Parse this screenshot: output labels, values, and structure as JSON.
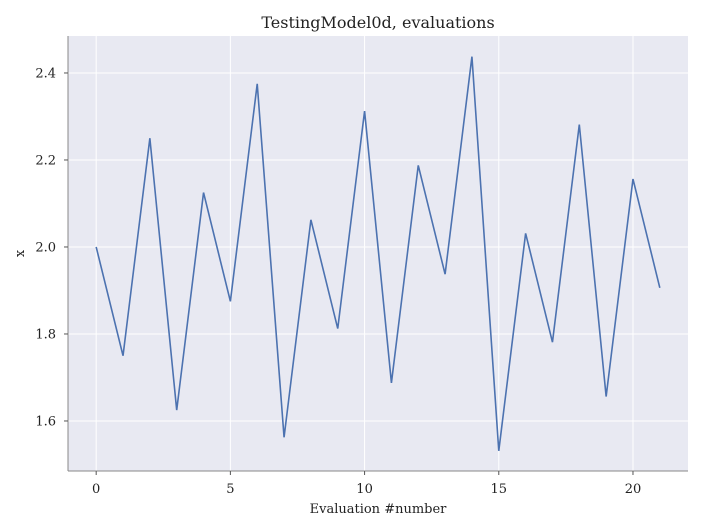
{
  "chart_data": {
    "type": "line",
    "title": "TestingModel0d, evaluations",
    "xlabel": "Evaluation #number",
    "ylabel": "x",
    "xlim": [
      -1.05,
      22.05
    ],
    "ylim": [
      1.485,
      2.485
    ],
    "grid": true,
    "background_color": "#e8e9f2",
    "grid_color": "#ffffff",
    "line_color": "#4c72b0",
    "x_ticks": [
      0,
      5,
      10,
      15,
      20
    ],
    "x_tick_labels": [
      "0",
      "5",
      "10",
      "15",
      "20"
    ],
    "y_ticks": [
      1.6,
      1.8,
      2.0,
      2.2,
      2.4
    ],
    "y_tick_labels": [
      "1.6",
      "1.8",
      "2.0",
      "2.2",
      "2.4"
    ],
    "series": [
      {
        "x": [
          0,
          1,
          2,
          3,
          4,
          5,
          6,
          7,
          8,
          9,
          10,
          11,
          12,
          13,
          14,
          15,
          16,
          17,
          18,
          19,
          20,
          21
        ],
        "values": [
          2.0,
          1.75,
          2.25,
          1.625,
          2.125,
          1.875,
          2.375,
          1.5625,
          2.0625,
          1.8125,
          2.3125,
          1.6875,
          2.1875,
          1.9375,
          2.4375,
          1.53125,
          2.03125,
          1.78125,
          2.28125,
          1.65625,
          2.15625,
          1.90625
        ]
      }
    ]
  }
}
